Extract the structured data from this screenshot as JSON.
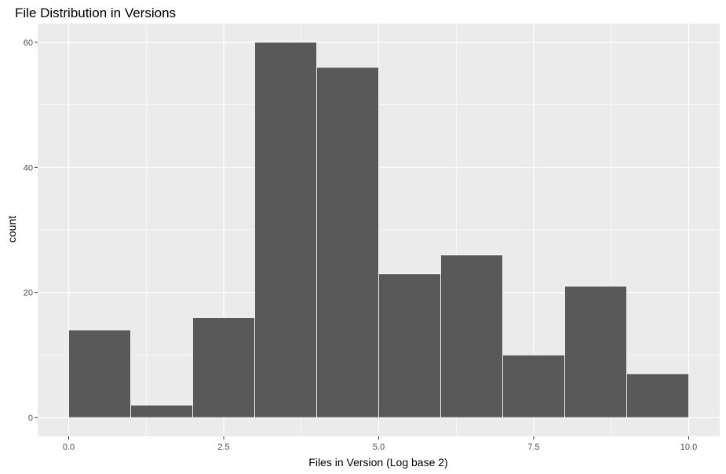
{
  "chart_data": {
    "type": "bar",
    "title": "File Distribution in Versions",
    "xlabel": "Files in Version (Log base 2)",
    "ylabel": "count",
    "bins": [
      {
        "x0": 0,
        "x1": 1,
        "count": 14
      },
      {
        "x0": 1,
        "x1": 2,
        "count": 2
      },
      {
        "x0": 2,
        "x1": 3,
        "count": 16
      },
      {
        "x0": 3,
        "x1": 4,
        "count": 60
      },
      {
        "x0": 4,
        "x1": 5,
        "count": 56
      },
      {
        "x0": 5,
        "x1": 6,
        "count": 23
      },
      {
        "x0": 6,
        "x1": 7,
        "count": 26
      },
      {
        "x0": 7,
        "x1": 8,
        "count": 10
      },
      {
        "x0": 8,
        "x1": 9,
        "count": 21
      },
      {
        "x0": 9,
        "x1": 10,
        "count": 7
      }
    ],
    "x_ticks": [
      0,
      2.5,
      5,
      7.5,
      10
    ],
    "x_tick_labels": [
      "0.0",
      "2.5",
      "5.0",
      "7.5",
      "10.0"
    ],
    "x_minor_ticks": [
      1.25,
      3.75,
      6.25,
      8.75
    ],
    "y_ticks": [
      0,
      20,
      40,
      60
    ],
    "y_tick_labels": [
      "0",
      "20",
      "40",
      "60"
    ],
    "y_minor_ticks": [
      10,
      30,
      50
    ],
    "xlim": [
      -0.5,
      10.5
    ],
    "ylim": [
      -3,
      63
    ],
    "grid": true,
    "colors": {
      "panel_background": "#ebebeb",
      "grid_line": "#ffffff",
      "bar_fill": "#595959",
      "bar_outline": "#ffffff",
      "tick_label": "#4d4d4d"
    }
  }
}
